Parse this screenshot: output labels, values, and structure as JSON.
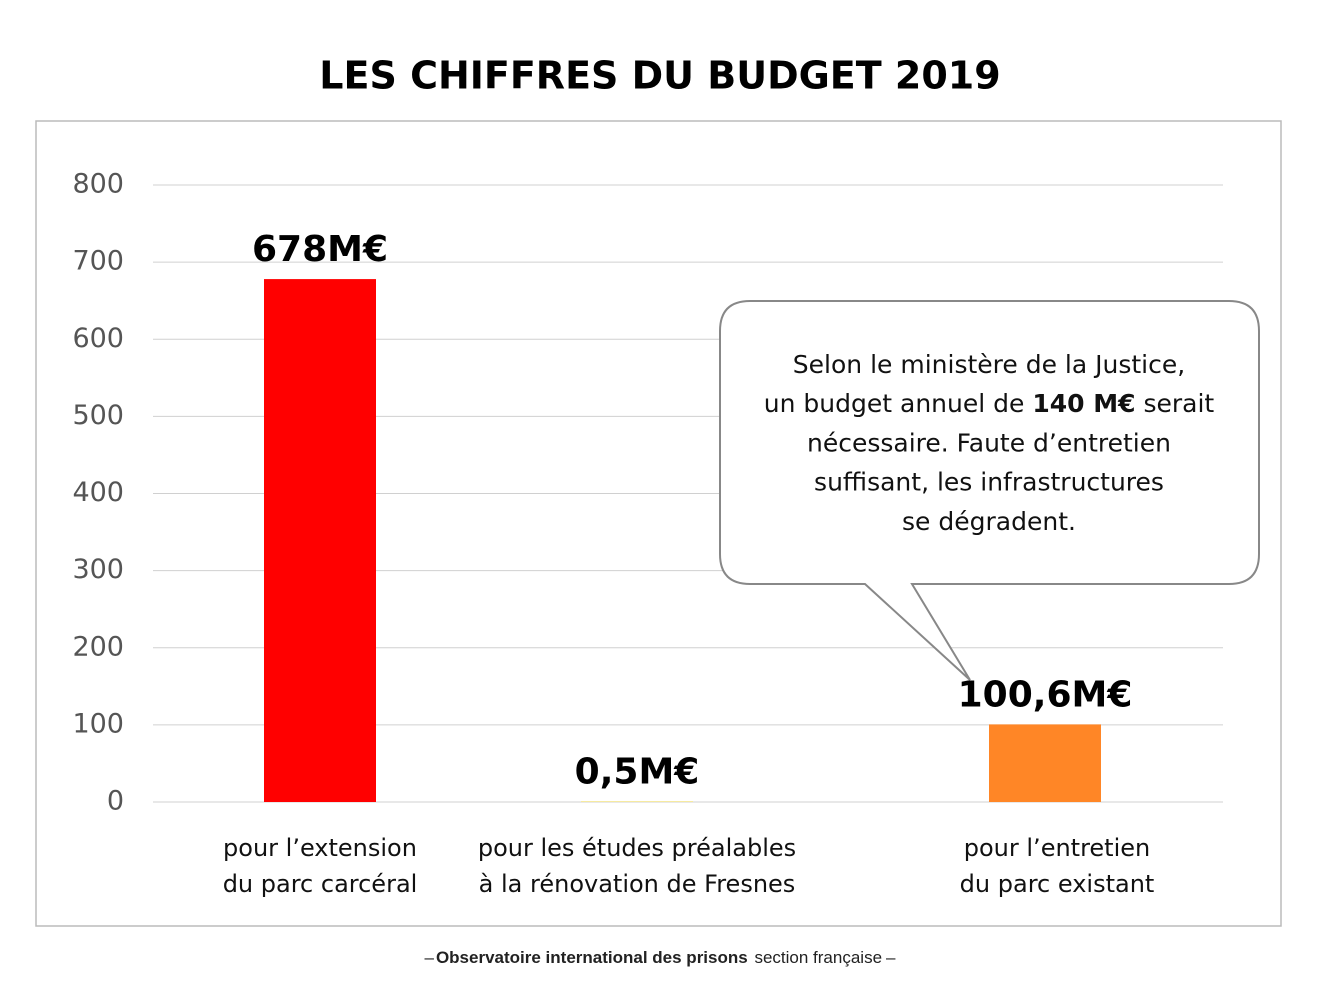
{
  "chart_data": {
    "type": "bar",
    "title": "LES CHIFFRES DU BUDGET 2019",
    "categories": [
      [
        "pour l’extension",
        "du parc carcéral"
      ],
      [
        "pour les études préalables",
        "à la rénovation de Fresnes"
      ],
      [
        "pour l’entretien",
        "du parc existant"
      ]
    ],
    "values": [
      678,
      0.5,
      100.6
    ],
    "value_labels": [
      "678M€",
      "0,5M€",
      "100,6M€"
    ],
    "colors": [
      "#ff0000",
      "#f7d917",
      "#ff8626"
    ],
    "ylim": [
      0,
      800
    ],
    "yticks": [
      0,
      100,
      200,
      300,
      400,
      500,
      600,
      700,
      800
    ],
    "grid": true,
    "annotation": {
      "lines": [
        [
          "Selon le ministère de la Justice,"
        ],
        [
          "un budget annuel de ",
          {
            "text": "140 M€",
            "bold": true
          },
          " serait"
        ],
        [
          "nécessaire. Faute d’entretien"
        ],
        [
          "suffisant, les infrastructures"
        ],
        [
          "se dégradent."
        ]
      ]
    }
  },
  "footer": {
    "prefix": "–",
    "org": "Observatoire international des prisons",
    "section": "section française",
    "suffix": "–"
  }
}
